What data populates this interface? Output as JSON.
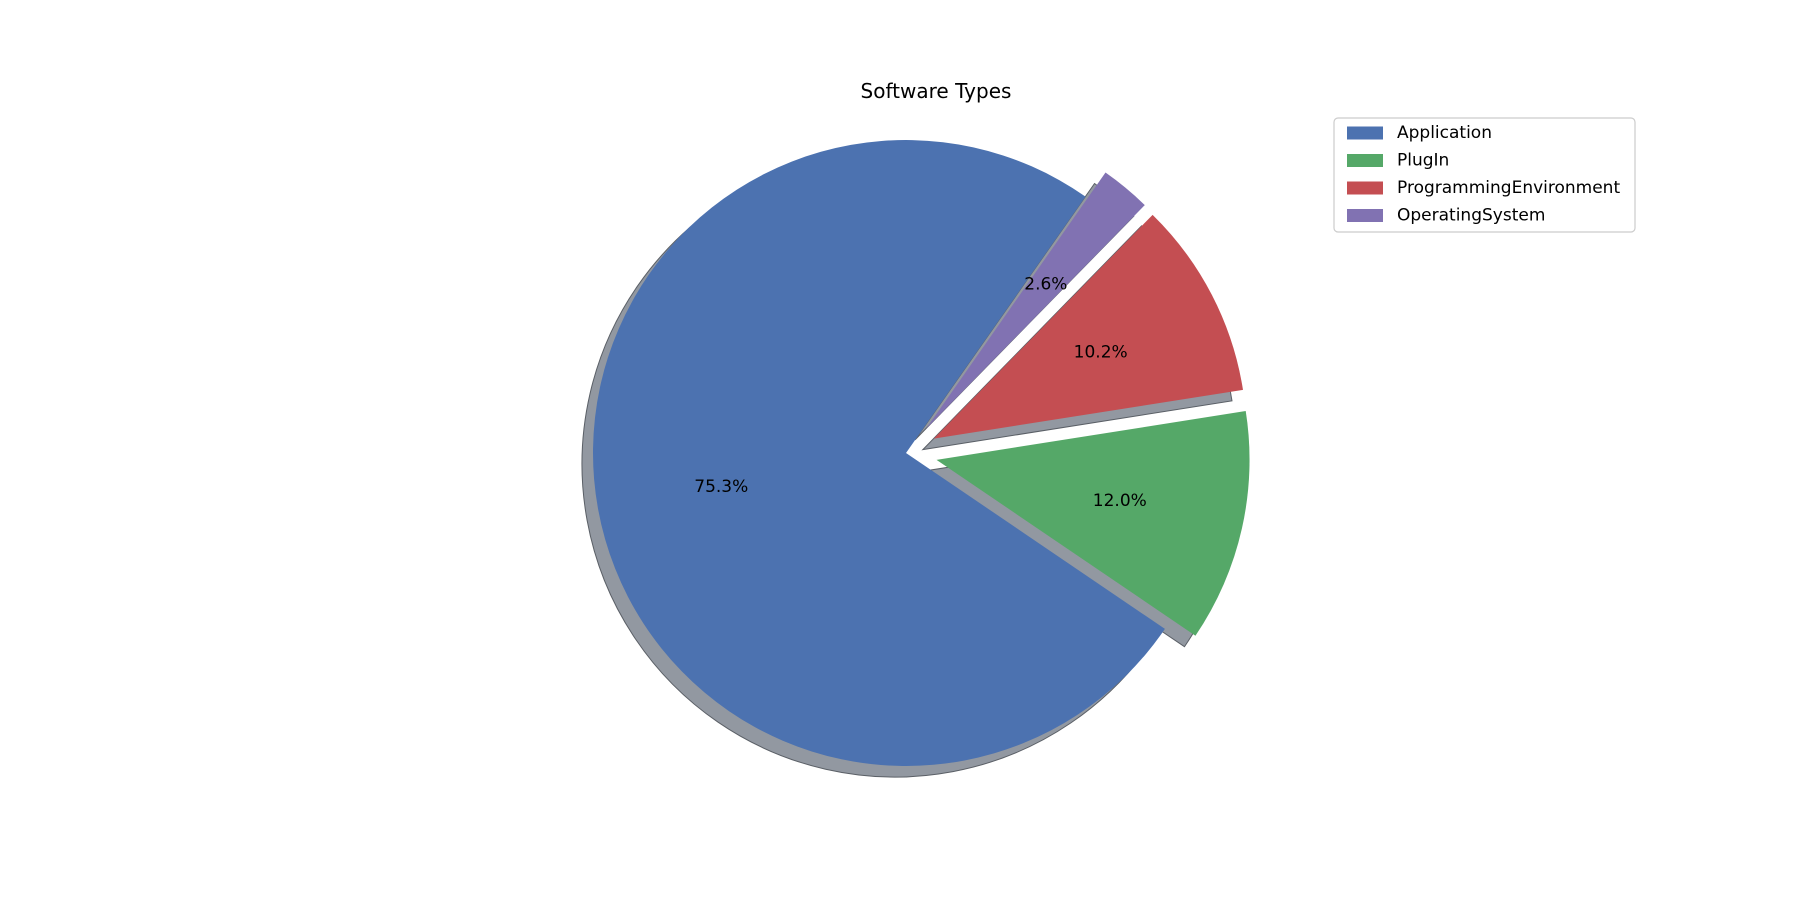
{
  "chart_data": {
    "type": "pie",
    "title": "Software Types",
    "categories": [
      "Application",
      "PlugIn",
      "ProgrammingEnvironment",
      "OperatingSystem"
    ],
    "values": [
      75.3,
      12.0,
      10.2,
      2.6
    ],
    "labels": [
      "75.3%",
      "12.0%",
      "10.2%",
      "2.6%"
    ],
    "colors": [
      "#4c72b0",
      "#55a868",
      "#c44e52",
      "#8172b2"
    ],
    "exploded": [
      false,
      true,
      true,
      true
    ],
    "shadow": true,
    "legend": {
      "position": "top-right",
      "entries": [
        "Application",
        "PlugIn",
        "ProgrammingEnvironment",
        "OperatingSystem"
      ]
    }
  }
}
